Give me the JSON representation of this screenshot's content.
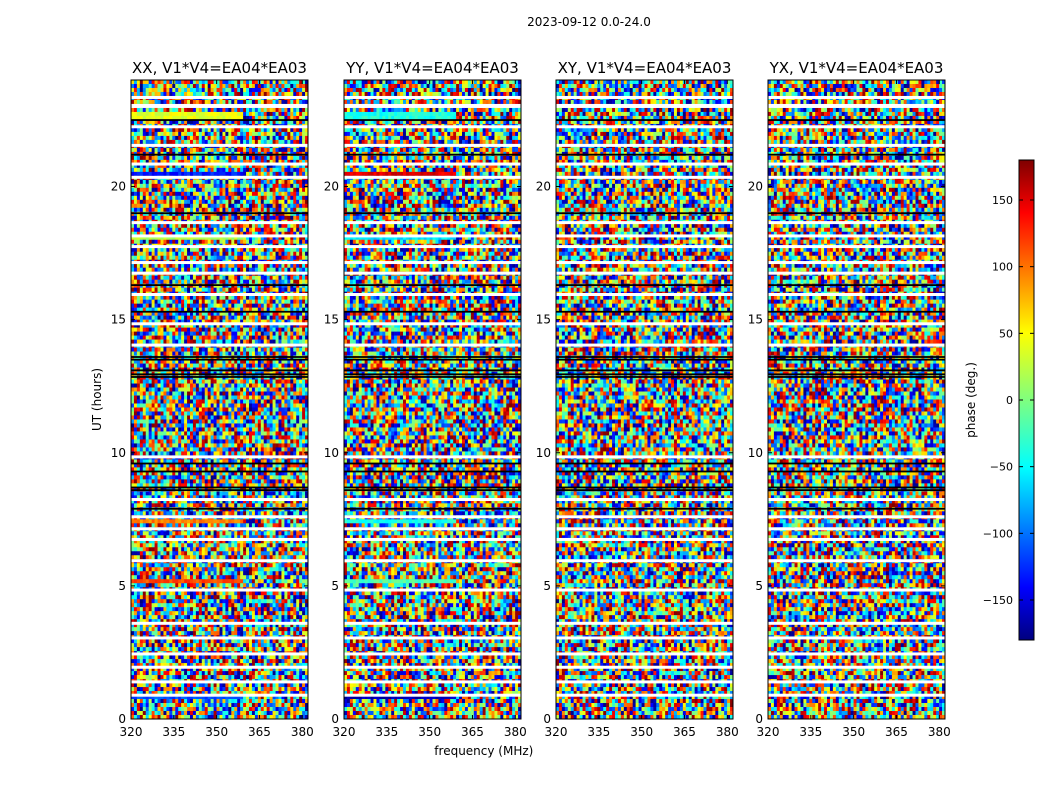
{
  "figure_title": "2023-09-12 0.0-24.0",
  "colors": {
    "flagged": "#ffffff",
    "row_separator": "#000000",
    "colormap": "jet"
  },
  "chart_data": [
    {
      "type": "heatmap",
      "title": "XX, V1*V4=EA04*EA03",
      "xlabel": "",
      "ylabel": "UT (hours)",
      "xlim": [
        320,
        382
      ],
      "ylim": [
        0,
        24
      ],
      "x_ticks": [
        "320",
        "335",
        "350",
        "365",
        "380"
      ],
      "y_ticks": [
        "0",
        "5",
        "10",
        "15",
        "20"
      ],
      "value_range": [
        -180,
        180
      ],
      "structure_note": "noisy phase; coherent bands near UT 0.8, 5.1, 7.4, 18.0, 20.5, 22.6"
    },
    {
      "type": "heatmap",
      "title": "YY, V1*V4=EA04*EA03",
      "xlabel": "frequency (MHz)",
      "ylabel": "",
      "xlim": [
        320,
        382
      ],
      "ylim": [
        0,
        24
      ],
      "x_ticks": [
        "320",
        "335",
        "350",
        "365",
        "380"
      ],
      "y_ticks": [
        "0",
        "5",
        "10",
        "15",
        "20"
      ],
      "value_range": [
        -180,
        180
      ]
    },
    {
      "type": "heatmap",
      "title": "XY, V1*V4=EA04*EA03",
      "xlabel": "",
      "ylabel": "",
      "xlim": [
        320,
        382
      ],
      "ylim": [
        0,
        24
      ],
      "x_ticks": [
        "320",
        "335",
        "350",
        "365",
        "380"
      ],
      "y_ticks": [
        "0",
        "5",
        "10",
        "15",
        "20"
      ],
      "value_range": [
        -180,
        180
      ]
    },
    {
      "type": "heatmap",
      "title": "YX, V1*V4=EA04*EA03",
      "xlabel": "",
      "ylabel": "",
      "xlim": [
        320,
        382
      ],
      "ylim": [
        0,
        24
      ],
      "x_ticks": [
        "320",
        "335",
        "350",
        "365",
        "380"
      ],
      "y_ticks": [
        "0",
        "5",
        "10",
        "15",
        "20"
      ],
      "value_range": [
        -180,
        180
      ]
    }
  ],
  "colorbar": {
    "label": "phase (deg.)",
    "range": [
      -180,
      180
    ],
    "ticks": [
      "150",
      "100",
      "50",
      "0",
      "−50",
      "−100",
      "−150"
    ],
    "tick_values": [
      150,
      100,
      50,
      0,
      -50,
      -100,
      -150
    ]
  }
}
